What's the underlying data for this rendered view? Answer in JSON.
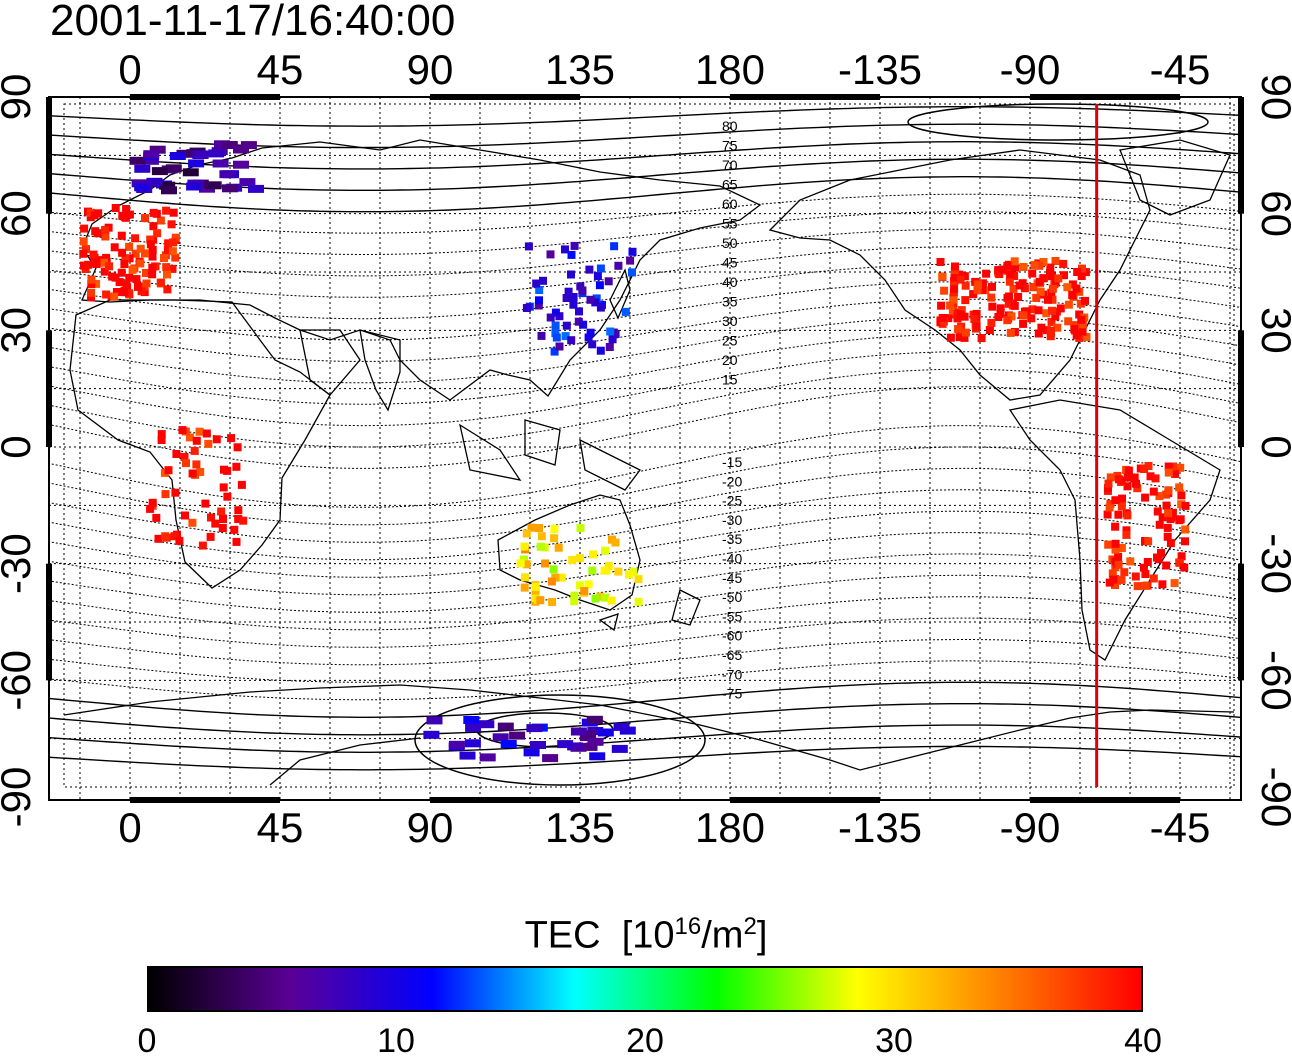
{
  "title": "2001-11-17/16:40:00",
  "map": {
    "top_lon_labels": [
      "0",
      "45",
      "90",
      "135",
      "180",
      "-135",
      "-90",
      "-45"
    ],
    "bottom_lon_labels": [
      "0",
      "45",
      "90",
      "135",
      "180",
      "-135",
      "-90",
      "-45"
    ],
    "left_lat_labels": [
      "90",
      "60",
      "30",
      "0",
      "-30",
      "-60",
      "-90"
    ],
    "right_lat_labels": [
      "90",
      "60",
      "30",
      "0",
      "-30",
      "-60",
      "-90"
    ],
    "contour_labels_north": [
      "80",
      "75",
      "70",
      "65",
      "60",
      "55",
      "50",
      "45",
      "40",
      "35",
      "30",
      "25",
      "20",
      "15"
    ],
    "contour_labels_south": [
      "-15",
      "-20",
      "-25",
      "-30",
      "-35",
      "-40",
      "-45",
      "-50",
      "-55",
      "-60",
      "-65",
      "-70",
      "-75"
    ],
    "meridian_marker_lon": -70,
    "meridian_marker_color": "#e00000"
  },
  "tec_regions": [
    {
      "name": "europe",
      "lon": 0,
      "lat": 50,
      "value": 40
    },
    {
      "name": "north-america",
      "lon": -95,
      "lat": 38,
      "value": 40
    },
    {
      "name": "south-america",
      "lon": -55,
      "lat": -20,
      "value": 40
    },
    {
      "name": "japan-china",
      "lon": 135,
      "lat": 38,
      "value": 10
    },
    {
      "name": "scandinavia",
      "lon": 20,
      "lat": 72,
      "value": 6
    },
    {
      "name": "africa",
      "lon": 20,
      "lat": -10,
      "value": 40
    },
    {
      "name": "australia",
      "lon": 135,
      "lat": -30,
      "value": 30
    },
    {
      "name": "antarctica",
      "lon": 120,
      "lat": -75,
      "value": 8
    }
  ],
  "colorbar": {
    "title": "TEC",
    "unit_prefix": "[10",
    "unit_exp": "16",
    "unit_mid": "/m",
    "unit_exp2": "2",
    "unit_suffix": "]",
    "min": 0,
    "max": 40,
    "tick_labels": [
      "0",
      "10",
      "20",
      "30",
      "40"
    ],
    "stops": [
      "#000000",
      "#5a0096",
      "#0000ff",
      "#00ffff",
      "#00ff00",
      "#ffff00",
      "#ff8000",
      "#ff0000"
    ]
  }
}
